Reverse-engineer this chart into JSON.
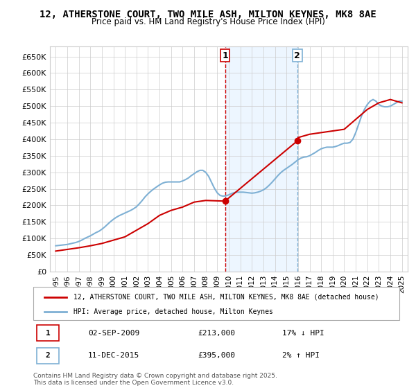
{
  "title": "12, ATHERSTONE COURT, TWO MILE ASH, MILTON KEYNES, MK8 8AE",
  "subtitle": "Price paid vs. HM Land Registry's House Price Index (HPI)",
  "xlabel": "",
  "ylabel": "",
  "ylim": [
    0,
    680000
  ],
  "yticks": [
    0,
    50000,
    100000,
    150000,
    200000,
    250000,
    300000,
    350000,
    400000,
    450000,
    500000,
    550000,
    600000,
    650000
  ],
  "ytick_labels": [
    "£0",
    "£50K",
    "£100K",
    "£150K",
    "£200K",
    "£250K",
    "£300K",
    "£350K",
    "£400K",
    "£450K",
    "£500K",
    "£550K",
    "£600K",
    "£650K"
  ],
  "background_color": "#ffffff",
  "plot_bg_color": "#ffffff",
  "grid_color": "#cccccc",
  "hpi_color": "#7eb0d4",
  "price_color": "#cc0000",
  "marker_color": "#cc0000",
  "vline1_color": "#cc0000",
  "vline2_color": "#7eb0d4",
  "shade_color": "#ddeeff",
  "marker1_date": 2009.67,
  "marker1_price": 213000,
  "marker2_date": 2015.94,
  "marker2_price": 395000,
  "legend_label1": "12, ATHERSTONE COURT, TWO MILE ASH, MILTON KEYNES, MK8 8AE (detached house)",
  "legend_label2": "HPI: Average price, detached house, Milton Keynes",
  "annotation1_label": "1",
  "annotation2_label": "2",
  "table_row1": [
    "1",
    "02-SEP-2009",
    "£213,000",
    "17% ↓ HPI"
  ],
  "table_row2": [
    "2",
    "11-DEC-2015",
    "£395,000",
    "2% ↑ HPI"
  ],
  "footer": "Contains HM Land Registry data © Crown copyright and database right 2025.\nThis data is licensed under the Open Government Licence v3.0.",
  "hpi_x": [
    1995.0,
    1995.25,
    1995.5,
    1995.75,
    1996.0,
    1996.25,
    1996.5,
    1996.75,
    1997.0,
    1997.25,
    1997.5,
    1997.75,
    1998.0,
    1998.25,
    1998.5,
    1998.75,
    1999.0,
    1999.25,
    1999.5,
    1999.75,
    2000.0,
    2000.25,
    2000.5,
    2000.75,
    2001.0,
    2001.25,
    2001.5,
    2001.75,
    2002.0,
    2002.25,
    2002.5,
    2002.75,
    2003.0,
    2003.25,
    2003.5,
    2003.75,
    2004.0,
    2004.25,
    2004.5,
    2004.75,
    2005.0,
    2005.25,
    2005.5,
    2005.75,
    2006.0,
    2006.25,
    2006.5,
    2006.75,
    2007.0,
    2007.25,
    2007.5,
    2007.75,
    2008.0,
    2008.25,
    2008.5,
    2008.75,
    2009.0,
    2009.25,
    2009.5,
    2009.75,
    2010.0,
    2010.25,
    2010.5,
    2010.75,
    2011.0,
    2011.25,
    2011.5,
    2011.75,
    2012.0,
    2012.25,
    2012.5,
    2012.75,
    2013.0,
    2013.25,
    2013.5,
    2013.75,
    2014.0,
    2014.25,
    2014.5,
    2014.75,
    2015.0,
    2015.25,
    2015.5,
    2015.75,
    2016.0,
    2016.25,
    2016.5,
    2016.75,
    2017.0,
    2017.25,
    2017.5,
    2017.75,
    2018.0,
    2018.25,
    2018.5,
    2018.75,
    2019.0,
    2019.25,
    2019.5,
    2019.75,
    2020.0,
    2020.25,
    2020.5,
    2020.75,
    2021.0,
    2021.25,
    2021.5,
    2021.75,
    2022.0,
    2022.25,
    2022.5,
    2022.75,
    2023.0,
    2023.25,
    2023.5,
    2023.75,
    2024.0,
    2024.25,
    2024.5,
    2024.75,
    2025.0
  ],
  "hpi_y": [
    78000,
    79000,
    80000,
    81000,
    82000,
    84000,
    86000,
    88000,
    91000,
    95000,
    100000,
    104000,
    108000,
    113000,
    118000,
    122000,
    128000,
    135000,
    143000,
    151000,
    158000,
    164000,
    169000,
    173000,
    177000,
    181000,
    185000,
    190000,
    196000,
    205000,
    215000,
    226000,
    235000,
    243000,
    250000,
    256000,
    262000,
    267000,
    270000,
    271000,
    271000,
    271000,
    271000,
    271000,
    274000,
    278000,
    283000,
    290000,
    296000,
    302000,
    306000,
    306000,
    300000,
    288000,
    270000,
    252000,
    238000,
    230000,
    228000,
    229000,
    232000,
    236000,
    239000,
    240000,
    240000,
    240000,
    239000,
    238000,
    237000,
    238000,
    240000,
    243000,
    247000,
    253000,
    261000,
    270000,
    280000,
    290000,
    299000,
    306000,
    312000,
    318000,
    324000,
    331000,
    338000,
    343000,
    346000,
    347000,
    350000,
    355000,
    360000,
    366000,
    371000,
    374000,
    376000,
    376000,
    376000,
    378000,
    381000,
    385000,
    388000,
    388000,
    390000,
    400000,
    420000,
    445000,
    470000,
    490000,
    505000,
    515000,
    520000,
    515000,
    505000,
    500000,
    498000,
    498000,
    500000,
    505000,
    510000,
    515000,
    515000
  ],
  "price_x": [
    1995.0,
    1996.0,
    1997.0,
    1998.0,
    1999.0,
    2000.0,
    2001.0,
    2002.0,
    2003.0,
    2004.0,
    2005.0,
    2006.0,
    2007.0,
    2008.0,
    2009.67,
    2015.94,
    2016.0,
    2017.0,
    2018.0,
    2019.0,
    2020.0,
    2021.0,
    2022.0,
    2023.0,
    2024.0,
    2025.0
  ],
  "price_y": [
    62000,
    67000,
    72000,
    78000,
    85000,
    95000,
    105000,
    125000,
    145000,
    170000,
    185000,
    195000,
    210000,
    215000,
    213000,
    395000,
    405000,
    415000,
    420000,
    425000,
    430000,
    460000,
    490000,
    510000,
    520000,
    510000
  ],
  "xlim": [
    1994.5,
    2025.5
  ],
  "xticks": [
    1995,
    1996,
    1997,
    1998,
    1999,
    2000,
    2001,
    2002,
    2003,
    2004,
    2005,
    2006,
    2007,
    2008,
    2009,
    2010,
    2011,
    2012,
    2013,
    2014,
    2015,
    2016,
    2017,
    2018,
    2019,
    2020,
    2021,
    2022,
    2023,
    2024,
    2025
  ]
}
